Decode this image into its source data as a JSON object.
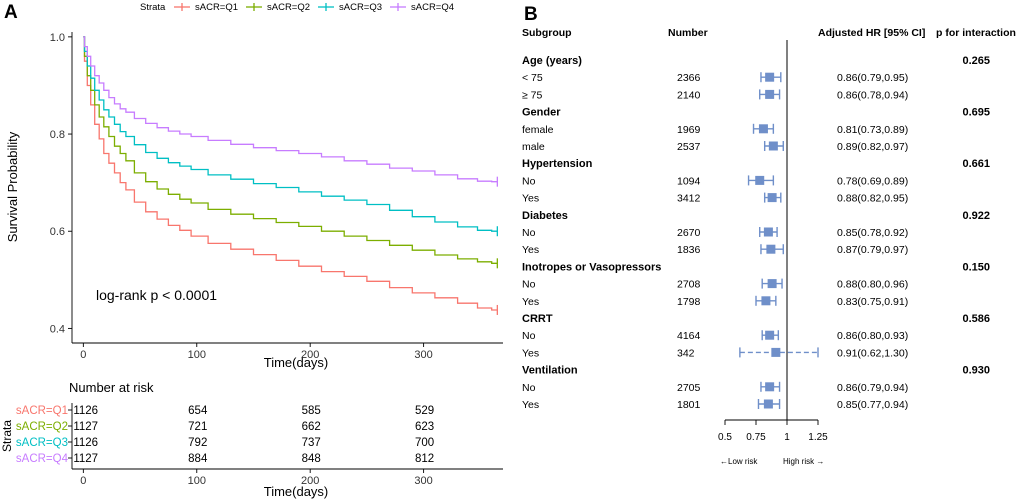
{
  "panels": {
    "a": "A",
    "b": "B"
  },
  "chart_data": [
    {
      "type": "line",
      "kind": "kaplan-meier",
      "ylabel": "Survival Probability",
      "xlabel": "Time(days)",
      "xlim": [
        -10,
        370
      ],
      "ylim": [
        0.37,
        1.01
      ],
      "xticks": [
        0,
        100,
        200,
        300
      ],
      "yticks": [
        0.4,
        0.6,
        0.8,
        1.0
      ],
      "ytick_labels": [
        "0.4",
        "0.6",
        "0.8",
        "1.0"
      ],
      "grid": false,
      "legend_title": "Strata",
      "annotation": "log-rank p < 0.0001",
      "series": [
        {
          "name": "sACR=Q1",
          "color": "#F8766D",
          "x": [
            0,
            2,
            5,
            8,
            12,
            16,
            20,
            25,
            30,
            35,
            40,
            50,
            60,
            70,
            80,
            90,
            100,
            120,
            140,
            160,
            180,
            200,
            220,
            240,
            260,
            280,
            300,
            320,
            340,
            355,
            365
          ],
          "y": [
            1.0,
            0.95,
            0.9,
            0.86,
            0.82,
            0.79,
            0.76,
            0.74,
            0.72,
            0.7,
            0.685,
            0.66,
            0.64,
            0.625,
            0.612,
            0.602,
            0.59,
            0.575,
            0.563,
            0.552,
            0.54,
            0.528,
            0.517,
            0.507,
            0.497,
            0.484,
            0.473,
            0.463,
            0.452,
            0.442,
            0.438
          ]
        },
        {
          "name": "sACR=Q2",
          "color": "#7CAE00",
          "x": [
            0,
            2,
            5,
            8,
            12,
            16,
            20,
            25,
            30,
            35,
            40,
            50,
            60,
            70,
            80,
            90,
            100,
            120,
            140,
            160,
            180,
            200,
            220,
            240,
            260,
            280,
            300,
            320,
            340,
            355,
            365
          ],
          "y": [
            1.0,
            0.96,
            0.92,
            0.89,
            0.86,
            0.835,
            0.815,
            0.795,
            0.775,
            0.76,
            0.745,
            0.72,
            0.702,
            0.687,
            0.676,
            0.666,
            0.658,
            0.645,
            0.635,
            0.626,
            0.618,
            0.61,
            0.6,
            0.59,
            0.581,
            0.571,
            0.561,
            0.551,
            0.543,
            0.537,
            0.534
          ]
        },
        {
          "name": "sACR=Q3",
          "color": "#00BFC4",
          "x": [
            0,
            2,
            5,
            8,
            12,
            16,
            20,
            25,
            30,
            35,
            40,
            50,
            60,
            70,
            80,
            90,
            100,
            120,
            140,
            160,
            180,
            200,
            220,
            240,
            260,
            280,
            300,
            320,
            340,
            355,
            365
          ],
          "y": [
            1.0,
            0.97,
            0.94,
            0.915,
            0.89,
            0.87,
            0.85,
            0.835,
            0.82,
            0.805,
            0.795,
            0.778,
            0.762,
            0.75,
            0.741,
            0.734,
            0.727,
            0.716,
            0.707,
            0.698,
            0.69,
            0.681,
            0.672,
            0.664,
            0.655,
            0.643,
            0.63,
            0.619,
            0.609,
            0.602,
            0.6
          ]
        },
        {
          "name": "sACR=Q4",
          "color": "#C77CFF",
          "x": [
            0,
            2,
            5,
            8,
            12,
            16,
            20,
            25,
            30,
            35,
            40,
            50,
            60,
            70,
            80,
            90,
            100,
            120,
            140,
            160,
            180,
            200,
            220,
            240,
            260,
            280,
            300,
            320,
            340,
            355,
            365
          ],
          "y": [
            1.0,
            0.98,
            0.96,
            0.94,
            0.92,
            0.905,
            0.89,
            0.875,
            0.862,
            0.852,
            0.845,
            0.832,
            0.822,
            0.813,
            0.806,
            0.8,
            0.795,
            0.787,
            0.779,
            0.772,
            0.766,
            0.76,
            0.753,
            0.745,
            0.738,
            0.73,
            0.724,
            0.716,
            0.708,
            0.703,
            0.702
          ]
        }
      ]
    },
    {
      "type": "table",
      "kind": "number-at-risk",
      "title": "Number at risk",
      "ylabel": "Strata",
      "xlabel": "Time(days)",
      "timepoints": [
        0,
        100,
        200,
        300
      ],
      "rows": [
        {
          "name": "sACR=Q1",
          "color": "#F8766D",
          "values": [
            1126,
            654,
            585,
            529
          ]
        },
        {
          "name": "sACR=Q2",
          "color": "#7CAE00",
          "values": [
            1127,
            721,
            662,
            623
          ]
        },
        {
          "name": "sACR=Q3",
          "color": "#00BFC4",
          "values": [
            1126,
            792,
            737,
            700
          ]
        },
        {
          "name": "sACR=Q4",
          "color": "#C77CFF",
          "values": [
            1127,
            884,
            848,
            812
          ]
        }
      ]
    },
    {
      "type": "scatter",
      "kind": "forest",
      "headers": {
        "subgroup": "Subgroup",
        "number": "Number",
        "hr": "Adjusted HR [95% CI]",
        "p": "p for interaction"
      },
      "xlim": [
        0.5,
        1.25
      ],
      "xticks": [
        0.5,
        0.75,
        1,
        1.25
      ],
      "xtick_labels": [
        "0.5",
        "0.75",
        "1",
        "1.25"
      ],
      "reference_line": 1,
      "xlabel_left": "←Low risk",
      "xlabel_right": "High risk →",
      "color": "#6F8FC9",
      "rows": [
        {
          "kind": "group",
          "label": "Age (years)",
          "p": "0.265"
        },
        {
          "kind": "item",
          "label": "< 75",
          "n": "2366",
          "hr": 0.86,
          "lo": 0.79,
          "hi": 0.95,
          "text": "0.86(0.79,0.95)"
        },
        {
          "kind": "item",
          "label": "≥ 75",
          "n": "2140",
          "hr": 0.86,
          "lo": 0.78,
          "hi": 0.94,
          "text": "0.86(0.78,0.94)"
        },
        {
          "kind": "group",
          "label": "Gender",
          "p": "0.695"
        },
        {
          "kind": "item",
          "label": "female",
          "n": "1969",
          "hr": 0.81,
          "lo": 0.73,
          "hi": 0.89,
          "text": "0.81(0.73,0.89)"
        },
        {
          "kind": "item",
          "label": "male",
          "n": "2537",
          "hr": 0.89,
          "lo": 0.82,
          "hi": 0.97,
          "text": "0.89(0.82,0.97)"
        },
        {
          "kind": "group",
          "label": "Hypertension",
          "p": "0.661"
        },
        {
          "kind": "item",
          "label": "No",
          "n": "1094",
          "hr": 0.78,
          "lo": 0.69,
          "hi": 0.89,
          "text": "0.78(0.69,0.89)"
        },
        {
          "kind": "item",
          "label": "Yes",
          "n": "3412",
          "hr": 0.88,
          "lo": 0.82,
          "hi": 0.95,
          "text": "0.88(0.82,0.95)"
        },
        {
          "kind": "group",
          "label": "Diabetes",
          "p": "0.922"
        },
        {
          "kind": "item",
          "label": "No",
          "n": "2670",
          "hr": 0.85,
          "lo": 0.78,
          "hi": 0.92,
          "text": "0.85(0.78,0.92)"
        },
        {
          "kind": "item",
          "label": "Yes",
          "n": "1836",
          "hr": 0.87,
          "lo": 0.79,
          "hi": 0.97,
          "text": "0.87(0.79,0.97)"
        },
        {
          "kind": "group",
          "label": "Inotropes or Vasopressors",
          "p": "0.150"
        },
        {
          "kind": "item",
          "label": "No",
          "n": "2708",
          "hr": 0.88,
          "lo": 0.8,
          "hi": 0.96,
          "text": "0.88(0.80,0.96)"
        },
        {
          "kind": "item",
          "label": "Yes",
          "n": "1798",
          "hr": 0.83,
          "lo": 0.75,
          "hi": 0.91,
          "text": "0.83(0.75,0.91)"
        },
        {
          "kind": "group",
          "label": "CRRT",
          "p": "0.586"
        },
        {
          "kind": "item",
          "label": "No",
          "n": "4164",
          "hr": 0.86,
          "lo": 0.8,
          "hi": 0.93,
          "text": "0.86(0.80,0.93)"
        },
        {
          "kind": "item",
          "label": "Yes",
          "n": "342",
          "hr": 0.91,
          "lo": 0.62,
          "hi": 1.3,
          "text": "0.91(0.62,1.30)",
          "truncated": true
        },
        {
          "kind": "group",
          "label": "Ventilation",
          "p": "0.930"
        },
        {
          "kind": "item",
          "label": "No",
          "n": "2705",
          "hr": 0.86,
          "lo": 0.79,
          "hi": 0.94,
          "text": "0.86(0.79,0.94)"
        },
        {
          "kind": "item",
          "label": "Yes",
          "n": "1801",
          "hr": 0.85,
          "lo": 0.77,
          "hi": 0.94,
          "text": "0.85(0.77,0.94)"
        }
      ]
    }
  ]
}
